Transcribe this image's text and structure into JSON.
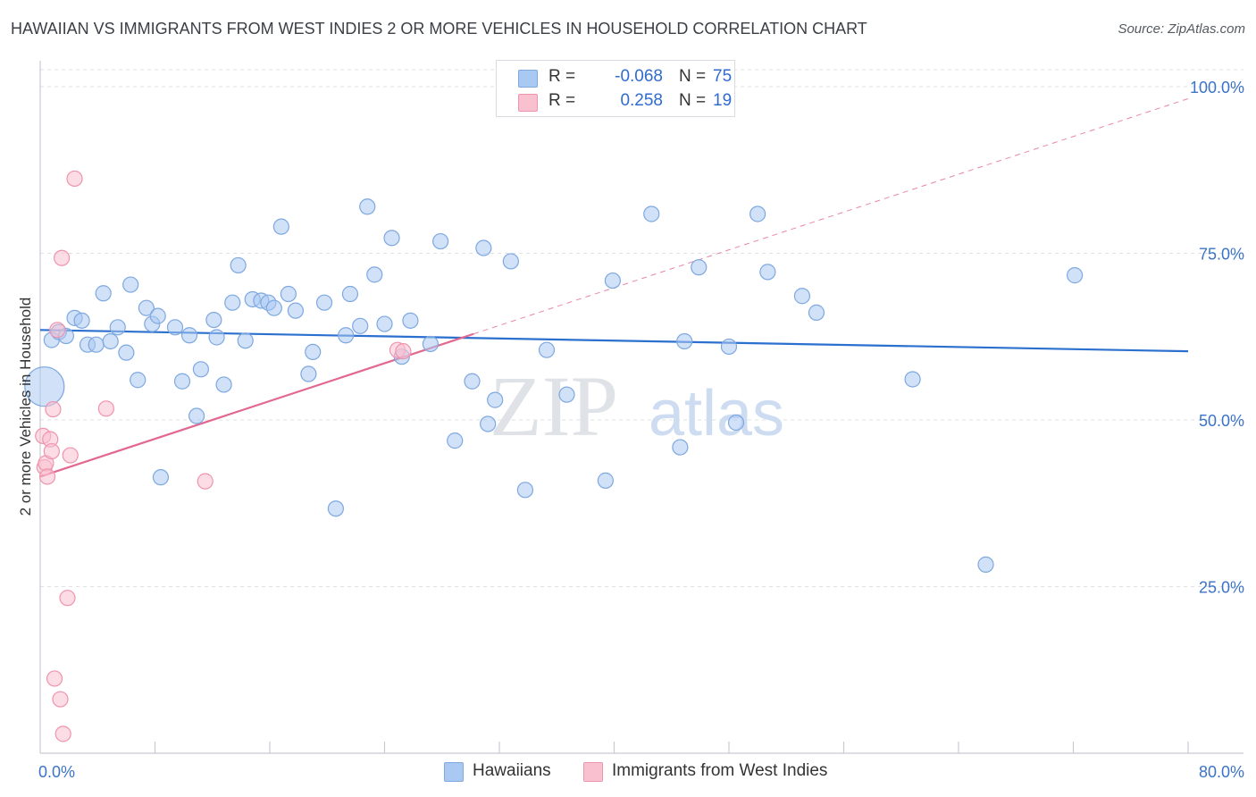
{
  "title": "HAWAIIAN VS IMMIGRANTS FROM WEST INDIES 2 OR MORE VEHICLES IN HOUSEHOLD CORRELATION CHART",
  "source": "Source: ZipAtlas.com",
  "watermark": {
    "zip": "ZIP",
    "atlas": "atlas"
  },
  "legend": {
    "rows": [
      {
        "r_label": "R =",
        "r_value": "-0.068",
        "n_label": "N =",
        "n_value": "75",
        "color": "#a9c9f2",
        "border": "#7ea8e0"
      },
      {
        "r_label": "R =",
        "r_value": "0.258",
        "n_label": "N =",
        "n_value": "19",
        "color": "#f9c0d0",
        "border": "#ef94ad"
      }
    ]
  },
  "bottom_legend": [
    {
      "label": "Hawaiians",
      "color": "#a9c9f2",
      "border": "#7ea8e0"
    },
    {
      "label": "Immigrants from West Indies",
      "color": "#f9c0d0",
      "border": "#ef94ad"
    }
  ],
  "chart_data": {
    "type": "scatter",
    "xlabel": "",
    "ylabel": "2 or more Vehicles in Household",
    "xlim": [
      0,
      80
    ],
    "ylim": [
      0,
      100
    ],
    "x_tick_labels": [
      "0.0%",
      "80.0%"
    ],
    "y_tick_labels": [
      "100.0%",
      "75.0%",
      "50.0%",
      "25.0%"
    ],
    "y_ticks": [
      100,
      75,
      50,
      25
    ],
    "x_minor_ticks": [
      8,
      16,
      24,
      32,
      40,
      48,
      56,
      64,
      72,
      80
    ],
    "series": [
      {
        "name": "Hawaiians",
        "color": "#a9c9f2",
        "stroke": "#7ea8e0",
        "trend": {
          "x": [
            0,
            80
          ],
          "y": [
            63.5,
            60.3
          ],
          "color": "#2b6fcf"
        },
        "points": [
          {
            "x": 0.3,
            "y": 55.0,
            "big": true
          },
          {
            "x": 0.8,
            "y": 62.0
          },
          {
            "x": 1.3,
            "y": 63.2
          },
          {
            "x": 1.8,
            "y": 62.6
          },
          {
            "x": 2.4,
            "y": 65.3
          },
          {
            "x": 2.9,
            "y": 64.9
          },
          {
            "x": 3.3,
            "y": 61.3
          },
          {
            "x": 3.9,
            "y": 61.3
          },
          {
            "x": 4.4,
            "y": 69.0
          },
          {
            "x": 4.9,
            "y": 61.8
          },
          {
            "x": 5.4,
            "y": 63.9
          },
          {
            "x": 6.0,
            "y": 60.1
          },
          {
            "x": 6.3,
            "y": 70.3
          },
          {
            "x": 6.8,
            "y": 56.0
          },
          {
            "x": 7.4,
            "y": 66.8
          },
          {
            "x": 7.8,
            "y": 64.4
          },
          {
            "x": 8.2,
            "y": 65.6
          },
          {
            "x": 8.4,
            "y": 41.4
          },
          {
            "x": 9.4,
            "y": 63.9
          },
          {
            "x": 9.9,
            "y": 55.8
          },
          {
            "x": 10.4,
            "y": 62.7
          },
          {
            "x": 10.9,
            "y": 50.6
          },
          {
            "x": 11.2,
            "y": 57.6
          },
          {
            "x": 12.1,
            "y": 65.0
          },
          {
            "x": 12.3,
            "y": 62.4
          },
          {
            "x": 12.8,
            "y": 55.3
          },
          {
            "x": 13.4,
            "y": 67.6
          },
          {
            "x": 13.8,
            "y": 73.2
          },
          {
            "x": 14.3,
            "y": 61.9
          },
          {
            "x": 14.8,
            "y": 68.1
          },
          {
            "x": 15.4,
            "y": 67.9
          },
          {
            "x": 15.9,
            "y": 67.6
          },
          {
            "x": 16.3,
            "y": 66.8
          },
          {
            "x": 16.8,
            "y": 79.0
          },
          {
            "x": 17.3,
            "y": 68.9
          },
          {
            "x": 17.8,
            "y": 66.4
          },
          {
            "x": 18.7,
            "y": 56.9
          },
          {
            "x": 19.0,
            "y": 60.2
          },
          {
            "x": 19.8,
            "y": 67.6
          },
          {
            "x": 20.6,
            "y": 36.7
          },
          {
            "x": 21.3,
            "y": 62.7
          },
          {
            "x": 21.6,
            "y": 68.9
          },
          {
            "x": 22.3,
            "y": 64.1
          },
          {
            "x": 22.8,
            "y": 82.0
          },
          {
            "x": 23.3,
            "y": 71.8
          },
          {
            "x": 24.0,
            "y": 64.4
          },
          {
            "x": 24.5,
            "y": 77.3
          },
          {
            "x": 25.2,
            "y": 59.5
          },
          {
            "x": 25.8,
            "y": 64.9
          },
          {
            "x": 27.2,
            "y": 61.4
          },
          {
            "x": 27.9,
            "y": 76.8
          },
          {
            "x": 28.9,
            "y": 46.9
          },
          {
            "x": 30.1,
            "y": 55.8
          },
          {
            "x": 30.9,
            "y": 75.8
          },
          {
            "x": 31.2,
            "y": 49.4
          },
          {
            "x": 31.7,
            "y": 53.0
          },
          {
            "x": 32.8,
            "y": 73.8
          },
          {
            "x": 33.8,
            "y": 39.5
          },
          {
            "x": 35.3,
            "y": 60.5
          },
          {
            "x": 36.7,
            "y": 53.8
          },
          {
            "x": 39.4,
            "y": 40.9
          },
          {
            "x": 39.9,
            "y": 70.9
          },
          {
            "x": 42.6,
            "y": 80.9
          },
          {
            "x": 44.6,
            "y": 45.9
          },
          {
            "x": 44.9,
            "y": 61.8
          },
          {
            "x": 45.9,
            "y": 72.9
          },
          {
            "x": 48.0,
            "y": 61.0
          },
          {
            "x": 48.5,
            "y": 49.6
          },
          {
            "x": 50.0,
            "y": 80.9
          },
          {
            "x": 50.7,
            "y": 72.2
          },
          {
            "x": 53.1,
            "y": 68.6
          },
          {
            "x": 54.1,
            "y": 66.1
          },
          {
            "x": 60.8,
            "y": 56.1
          },
          {
            "x": 65.9,
            "y": 28.3
          },
          {
            "x": 72.1,
            "y": 71.7
          }
        ]
      },
      {
        "name": "Immigrants from West Indies",
        "color": "#f9c0d0",
        "stroke": "#ef94ad",
        "trend": {
          "x": [
            0,
            30.2
          ],
          "y": [
            41.5,
            62.9
          ],
          "color": "#e3688f",
          "dashed_x": [
            30.2,
            80
          ],
          "dashed_y": [
            62.9,
            98.2
          ]
        },
        "points": [
          {
            "x": 0.2,
            "y": 47.6
          },
          {
            "x": 0.3,
            "y": 42.9
          },
          {
            "x": 0.4,
            "y": 43.5
          },
          {
            "x": 0.5,
            "y": 41.5
          },
          {
            "x": 0.7,
            "y": 47.1
          },
          {
            "x": 0.8,
            "y": 45.3
          },
          {
            "x": 0.9,
            "y": 51.6
          },
          {
            "x": 1.0,
            "y": 11.2
          },
          {
            "x": 1.2,
            "y": 63.5
          },
          {
            "x": 1.5,
            "y": 74.3
          },
          {
            "x": 1.4,
            "y": 8.1
          },
          {
            "x": 1.6,
            "y": 2.9
          },
          {
            "x": 1.9,
            "y": 23.3
          },
          {
            "x": 2.1,
            "y": 44.7
          },
          {
            "x": 2.4,
            "y": 86.2
          },
          {
            "x": 4.6,
            "y": 51.7
          },
          {
            "x": 11.5,
            "y": 40.8
          },
          {
            "x": 24.9,
            "y": 60.5
          },
          {
            "x": 25.3,
            "y": 60.3
          }
        ]
      }
    ]
  }
}
